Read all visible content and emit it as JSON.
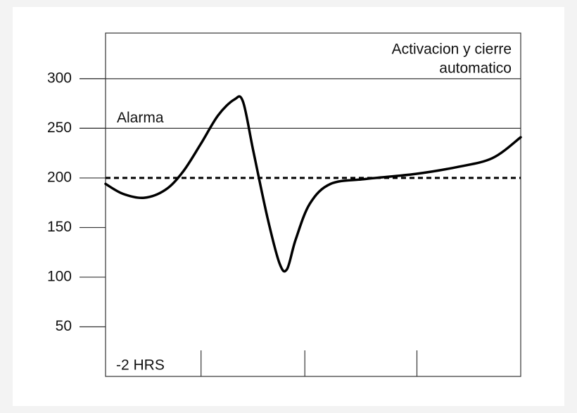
{
  "chart_data": {
    "type": "line",
    "ylim": [
      0,
      346
    ],
    "yticks": [
      50,
      100,
      150,
      200,
      250,
      300
    ],
    "xlim": [
      0,
      100
    ],
    "xticks": [
      23,
      48,
      75
    ],
    "x_start_label": "-2 HRS",
    "reference_lines": [
      {
        "value": 300,
        "style": "solid",
        "label": [
          "Activacion y cierre",
          "automatico"
        ]
      },
      {
        "value": 250,
        "style": "solid",
        "label": [
          "Alarma"
        ]
      },
      {
        "value": 200,
        "style": "dashed"
      }
    ],
    "series": [
      {
        "color": "#000000",
        "x": [
          0,
          4.2,
          9.3,
          14.4,
          18.6,
          22.9,
          27.1,
          31,
          33.1,
          35.6,
          39,
          41.9,
          43.7,
          45.8,
          49.2,
          54.2,
          62.7,
          74.6,
          84.7,
          93.2,
          100
        ],
        "values": [
          194,
          184,
          180,
          188,
          206,
          234,
          263,
          279,
          277,
          227,
          160,
          114,
          108,
          138,
          174,
          194,
          199,
          204,
          211,
          220,
          241
        ]
      }
    ]
  }
}
